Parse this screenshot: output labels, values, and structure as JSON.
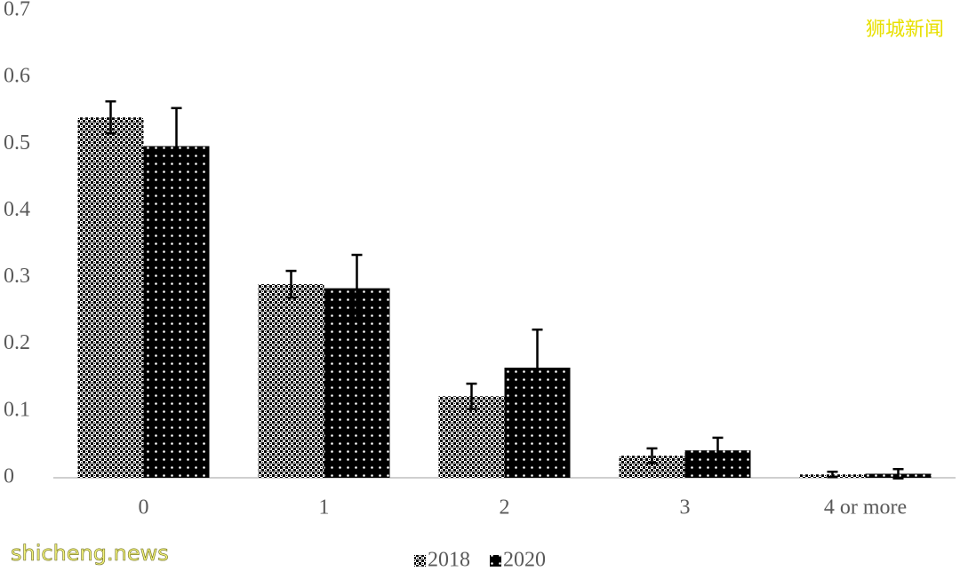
{
  "chart_data": {
    "type": "bar",
    "categories": [
      "0",
      "1",
      "2",
      "3",
      "4 or more"
    ],
    "series": [
      {
        "name": "2018",
        "color": "#000000",
        "pattern": "checker",
        "values": [
          0.54,
          0.29,
          0.122,
          0.033,
          0.005
        ],
        "errors": [
          0.024,
          0.02,
          0.019,
          0.011,
          0.004
        ]
      },
      {
        "name": "2020",
        "color": "#000000",
        "pattern": "dots",
        "values": [
          0.497,
          0.284,
          0.165,
          0.041,
          0.006
        ],
        "errors": [
          0.057,
          0.05,
          0.057,
          0.019,
          0.007
        ]
      }
    ],
    "ylim": [
      0,
      0.7
    ],
    "yticks": [
      0,
      0.1,
      0.2,
      0.3,
      0.4,
      0.5,
      0.6,
      0.7
    ],
    "grid": false,
    "legend": "bottom"
  },
  "watermarks": [
    "狮城新闻",
    "shicheng.news"
  ]
}
